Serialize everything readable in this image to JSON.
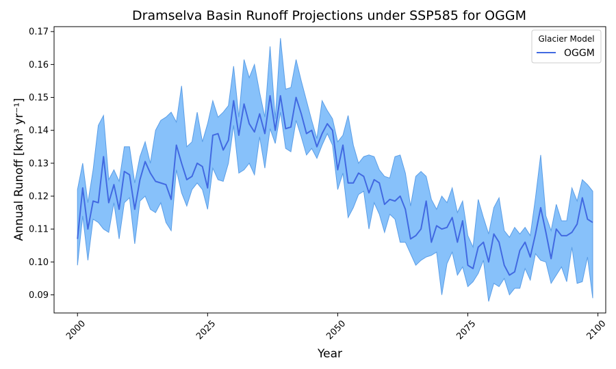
{
  "chart_data": {
    "type": "area",
    "title": "Dramselva Basin Runoff Projections under SSP585 for OGGM",
    "xlabel": "Year",
    "ylabel": "Annual Runoff [km³ yr⁻¹]",
    "xlim": [
      1995.5,
      2101.5
    ],
    "ylim": [
      0.0845,
      0.1715
    ],
    "x_ticks": [
      2000,
      2025,
      2050,
      2075,
      2100
    ],
    "y_ticks": [
      0.09,
      0.1,
      0.11,
      0.12,
      0.13,
      0.14,
      0.15,
      0.16,
      0.17
    ],
    "grid": false,
    "legend": {
      "title": "Glacier Model",
      "location": "top-right"
    },
    "colors": {
      "line": "#4169e1",
      "band_fill": "#87c1fa",
      "band_edge": "#5a9de6"
    },
    "series": [
      {
        "name": "OGGM",
        "x_start": 2000,
        "x_end": 2099,
        "mean": [
          0.107,
          0.1225,
          0.11,
          0.1185,
          0.118,
          0.132,
          0.118,
          0.1235,
          0.116,
          0.1275,
          0.1265,
          0.116,
          0.125,
          0.1305,
          0.127,
          0.1245,
          0.124,
          0.1235,
          0.119,
          0.1355,
          0.13,
          0.125,
          0.126,
          0.13,
          0.129,
          0.1225,
          0.1385,
          0.139,
          0.134,
          0.137,
          0.149,
          0.1385,
          0.148,
          0.142,
          0.1395,
          0.145,
          0.139,
          0.1505,
          0.14,
          0.1505,
          0.1405,
          0.141,
          0.15,
          0.145,
          0.139,
          0.14,
          0.135,
          0.139,
          0.142,
          0.14,
          0.128,
          0.1355,
          0.124,
          0.124,
          0.127,
          0.126,
          0.121,
          0.125,
          0.124,
          0.1175,
          0.119,
          0.1185,
          0.12,
          0.116,
          0.107,
          0.108,
          0.11,
          0.1185,
          0.106,
          0.111,
          0.11,
          0.1105,
          0.1135,
          0.106,
          0.1125,
          0.099,
          0.098,
          0.1045,
          0.106,
          0.1,
          0.1085,
          0.106,
          0.099,
          0.096,
          0.097,
          0.1035,
          0.106,
          0.1015,
          0.1085,
          0.1165,
          0.109,
          0.101,
          0.11,
          0.108,
          0.108,
          0.109,
          0.1115,
          0.1195,
          0.113,
          0.112
        ],
        "upper": [
          0.122,
          0.13,
          0.118,
          0.128,
          0.1415,
          0.1445,
          0.125,
          0.128,
          0.1245,
          0.135,
          0.135,
          0.124,
          0.132,
          0.1365,
          0.13,
          0.14,
          0.143,
          0.144,
          0.1455,
          0.1425,
          0.1535,
          0.135,
          0.1365,
          0.1455,
          0.1365,
          0.142,
          0.149,
          0.144,
          0.1455,
          0.1475,
          0.1595,
          0.144,
          0.1615,
          0.156,
          0.16,
          0.1515,
          0.144,
          0.1655,
          0.1435,
          0.168,
          0.1525,
          0.153,
          0.1615,
          0.155,
          0.149,
          0.143,
          0.1375,
          0.149,
          0.146,
          0.1435,
          0.1365,
          0.1385,
          0.1445,
          0.1355,
          0.13,
          0.132,
          0.1325,
          0.132,
          0.128,
          0.126,
          0.1255,
          0.132,
          0.1325,
          0.127,
          0.117,
          0.126,
          0.1275,
          0.126,
          0.119,
          0.116,
          0.12,
          0.118,
          0.1225,
          0.115,
          0.1185,
          0.108,
          0.1045,
          0.119,
          0.1135,
          0.1085,
          0.1165,
          0.1195,
          0.1095,
          0.1075,
          0.1105,
          0.1085,
          0.1105,
          0.108,
          0.1195,
          0.1325,
          0.114,
          0.1095,
          0.1175,
          0.1125,
          0.1125,
          0.1225,
          0.1185,
          0.125,
          0.1235,
          0.1215
        ],
        "lower": [
          0.099,
          0.114,
          0.1005,
          0.113,
          0.112,
          0.11,
          0.109,
          0.118,
          0.107,
          0.118,
          0.1195,
          0.1055,
          0.1185,
          0.12,
          0.116,
          0.115,
          0.118,
          0.112,
          0.1095,
          0.128,
          0.121,
          0.117,
          0.122,
          0.124,
          0.122,
          0.116,
          0.1285,
          0.125,
          0.1245,
          0.13,
          0.1415,
          0.127,
          0.128,
          0.13,
          0.1265,
          0.138,
          0.1285,
          0.1405,
          0.136,
          0.1455,
          0.1345,
          0.1335,
          0.143,
          0.138,
          0.1325,
          0.1345,
          0.1315,
          0.1355,
          0.139,
          0.1355,
          0.122,
          0.127,
          0.1135,
          0.1165,
          0.1205,
          0.1215,
          0.11,
          0.118,
          0.1145,
          0.109,
          0.1145,
          0.113,
          0.106,
          0.106,
          0.1025,
          0.099,
          0.1005,
          0.1015,
          0.102,
          0.103,
          0.09,
          0.0995,
          0.103,
          0.096,
          0.0985,
          0.0925,
          0.094,
          0.0965,
          0.1005,
          0.088,
          0.0935,
          0.0925,
          0.095,
          0.09,
          0.092,
          0.092,
          0.098,
          0.0945,
          0.1025,
          0.1005,
          0.1,
          0.0935,
          0.096,
          0.0985,
          0.094,
          0.1045,
          0.0935,
          0.094,
          0.1015,
          0.089
        ]
      }
    ]
  }
}
